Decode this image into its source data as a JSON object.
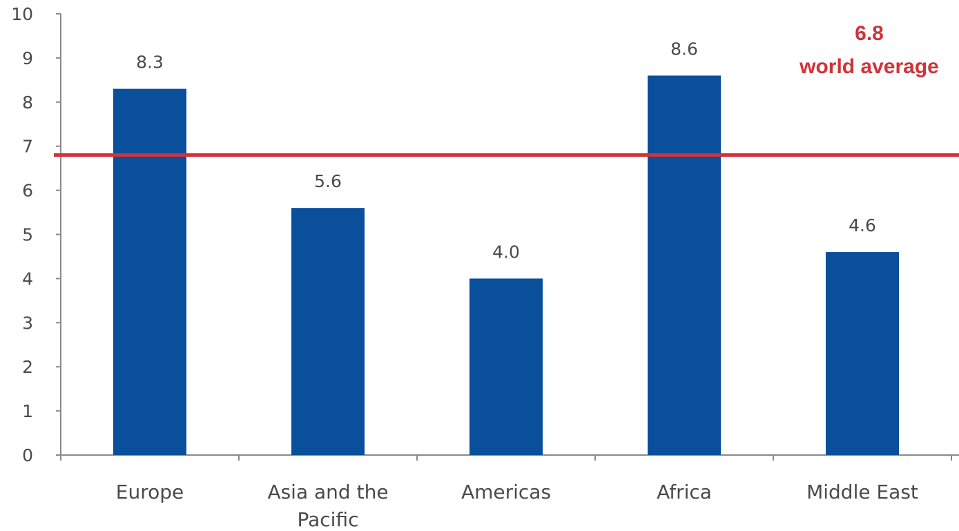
{
  "chart_data": {
    "type": "bar",
    "categories": [
      "Europe",
      "Asia and the Pacific",
      "Americas",
      "Africa",
      "Middle East"
    ],
    "category_lines": [
      [
        "Europe"
      ],
      [
        "Asia and the",
        "Pacific"
      ],
      [
        "Americas"
      ],
      [
        "Africa"
      ],
      [
        "Middle East"
      ]
    ],
    "values": [
      8.3,
      5.6,
      4.0,
      8.6,
      4.6
    ],
    "value_labels": [
      "8.3",
      "5.6",
      "4.0",
      "8.6",
      "4.6"
    ],
    "ylim": [
      0,
      10
    ],
    "yticks": [
      0,
      1,
      2,
      3,
      4,
      5,
      6,
      7,
      8,
      9,
      10
    ],
    "grid": false,
    "reference_line": {
      "value": 6.8,
      "value_label": "6.8",
      "label": "world average",
      "color": "#d0323a"
    },
    "colors": {
      "bar": "#0a4f9c",
      "axis": "#8a8a8a",
      "text": "#4a4a4a"
    }
  }
}
